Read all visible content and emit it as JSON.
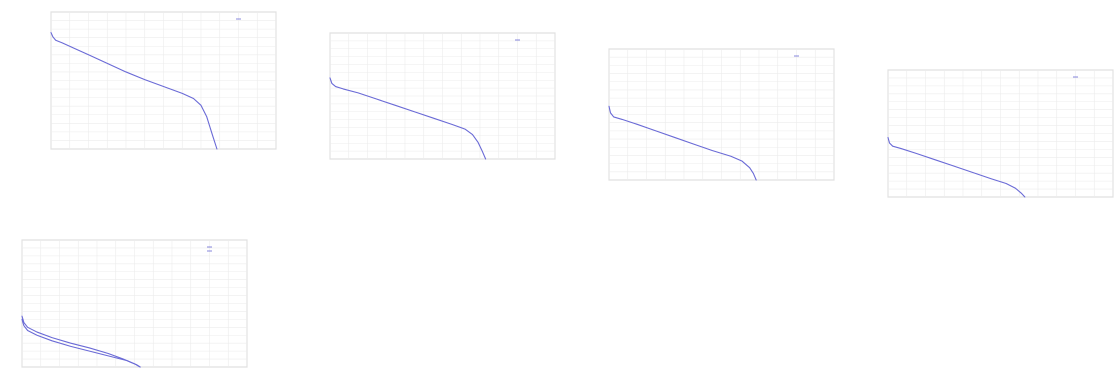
{
  "chart_data": [
    {
      "type": "line",
      "title": "",
      "xlabel": "",
      "ylabel": "",
      "xlim": [
        0,
        12
      ],
      "ylim": [
        0,
        16
      ],
      "grid": true,
      "legend": "top-right",
      "x_tick_labels": [
        "",
        "",
        "",
        "",
        "",
        "",
        "",
        "",
        "",
        "",
        "",
        "",
        ""
      ],
      "y_tick_labels": [
        "",
        "",
        "",
        "",
        "",
        "",
        "",
        "",
        "",
        "",
        "",
        "",
        "",
        "",
        "",
        "",
        ""
      ],
      "legend_entries": [
        ""
      ],
      "series": [
        {
          "color": "#6a6ad6",
          "x": [
            0,
            0.1,
            0.25,
            0.6,
            1.2,
            2.0,
            3.0,
            4.0,
            5.0,
            6.0,
            7.0,
            7.6,
            8.0,
            8.3,
            8.6,
            8.85
          ],
          "y": [
            13.6,
            13.1,
            12.7,
            12.4,
            11.8,
            11.0,
            10.0,
            9.0,
            8.1,
            7.3,
            6.5,
            5.9,
            5.1,
            3.8,
            1.7,
            0
          ]
        }
      ]
    },
    {
      "type": "line",
      "title": "",
      "xlabel": "",
      "ylabel": "",
      "xlim": [
        0,
        12
      ],
      "ylim": [
        0,
        16
      ],
      "grid": true,
      "legend": "top-right",
      "x_tick_labels": [
        "",
        "",
        "",
        "",
        "",
        "",
        "",
        "",
        "",
        "",
        "",
        "",
        ""
      ],
      "y_tick_labels": [
        "",
        "",
        "",
        "",
        "",
        "",
        "",
        "",
        "",
        "",
        "",
        "",
        "",
        "",
        "",
        "",
        ""
      ],
      "legend_entries": [
        ""
      ],
      "series": [
        {
          "color": "#6a6ad6",
          "x": [
            0,
            0.1,
            0.3,
            0.7,
            1.5,
            2.5,
            3.5,
            4.5,
            5.5,
            6.5,
            7.2,
            7.6,
            7.9,
            8.1,
            8.3
          ],
          "y": [
            10.3,
            9.6,
            9.2,
            8.9,
            8.4,
            7.6,
            6.8,
            6.0,
            5.2,
            4.4,
            3.8,
            3.1,
            2.1,
            1.1,
            0
          ]
        }
      ]
    },
    {
      "type": "line",
      "title": "",
      "xlabel": "",
      "ylabel": "",
      "xlim": [
        0,
        12
      ],
      "ylim": [
        0,
        16
      ],
      "grid": true,
      "legend": "top-right",
      "x_tick_labels": [
        "",
        "",
        "",
        "",
        "",
        "",
        "",
        "",
        "",
        "",
        "",
        "",
        ""
      ],
      "y_tick_labels": [
        "",
        "",
        "",
        "",
        "",
        "",
        "",
        "",
        "",
        "",
        "",
        "",
        "",
        "",
        "",
        "",
        ""
      ],
      "legend_entries": [
        ""
      ],
      "series": [
        {
          "color": "#6a6ad6",
          "x": [
            0,
            0.08,
            0.25,
            0.7,
            1.5,
            2.5,
            3.5,
            4.5,
            5.5,
            6.5,
            7.1,
            7.5,
            7.7,
            7.85
          ],
          "y": [
            9.0,
            8.2,
            7.7,
            7.4,
            6.8,
            6.0,
            5.2,
            4.4,
            3.6,
            2.9,
            2.3,
            1.5,
            0.8,
            0
          ]
        }
      ]
    },
    {
      "type": "line",
      "title": "",
      "xlabel": "",
      "ylabel": "",
      "xlim": [
        0,
        12
      ],
      "ylim": [
        0,
        16
      ],
      "grid": true,
      "legend": "top-right",
      "x_tick_labels": [
        "",
        "",
        "",
        "",
        "",
        "",
        "",
        "",
        "",
        "",
        "",
        "",
        ""
      ],
      "y_tick_labels": [
        "",
        "",
        "",
        "",
        "",
        "",
        "",
        "",
        "",
        "",
        "",
        "",
        "",
        "",
        "",
        "",
        ""
      ],
      "legend_entries": [
        ""
      ],
      "series": [
        {
          "color": "#6a6ad6",
          "x": [
            0,
            0.08,
            0.25,
            0.7,
            1.5,
            2.5,
            3.5,
            4.5,
            5.5,
            6.3,
            6.8,
            7.1,
            7.3
          ],
          "y": [
            7.5,
            6.8,
            6.4,
            6.1,
            5.5,
            4.7,
            3.9,
            3.1,
            2.3,
            1.7,
            1.1,
            0.5,
            0
          ]
        }
      ]
    },
    {
      "type": "line",
      "title": "",
      "xlabel": "",
      "ylabel": "",
      "xlim": [
        0,
        12
      ],
      "ylim": [
        0,
        16
      ],
      "grid": true,
      "legend": "top-right",
      "x_tick_labels": [
        "",
        "",
        "",
        "",
        "",
        "",
        "",
        "",
        "",
        "",
        "",
        "",
        ""
      ],
      "y_tick_labels": [
        "",
        "",
        "",
        "",
        "",
        "",
        "",
        "",
        "",
        "",
        "",
        "",
        "",
        "",
        "",
        "",
        ""
      ],
      "legend_entries": [
        "",
        ""
      ],
      "series": [
        {
          "color": "#6a6ad6",
          "x": [
            0,
            0.1,
            0.3,
            0.8,
            1.6,
            2.6,
            3.6,
            4.6,
            5.6,
            6.1,
            6.3
          ],
          "y": [
            6.0,
            5.2,
            4.6,
            4.0,
            3.3,
            2.6,
            2.0,
            1.4,
            0.8,
            0.3,
            0
          ]
        },
        {
          "color": "#6a6ad6",
          "x": [
            0,
            0.1,
            0.3,
            0.8,
            1.6,
            2.6,
            3.6,
            4.6,
            5.4,
            6.0,
            6.3
          ],
          "y": [
            6.4,
            5.6,
            5.0,
            4.4,
            3.7,
            3.0,
            2.4,
            1.7,
            1.0,
            0.4,
            0
          ]
        }
      ]
    }
  ]
}
